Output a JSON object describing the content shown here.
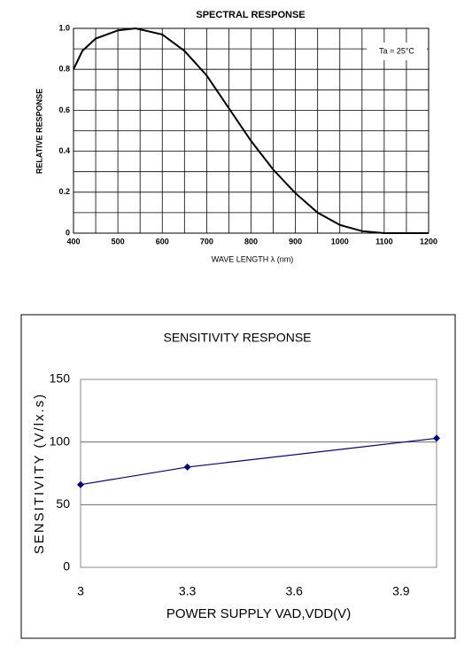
{
  "chart_data": [
    {
      "type": "line",
      "title": "SPECTRAL RESPONSE",
      "x_label": "WAVE LENGTH  λ  (nm)",
      "y_label": "RELATIVE RESPONSE",
      "annotation": "Ta = 25°C",
      "x": [
        400,
        420,
        450,
        500,
        540,
        600,
        650,
        700,
        750,
        800,
        850,
        900,
        950,
        1000,
        1050,
        1100,
        1150,
        1200
      ],
      "series": [
        {
          "name": "Relative response",
          "color": "#000000",
          "values": [
            0.8,
            0.89,
            0.95,
            0.99,
            1.0,
            0.97,
            0.89,
            0.77,
            0.61,
            0.45,
            0.31,
            0.195,
            0.1,
            0.04,
            0.01,
            0,
            0,
            0
          ]
        }
      ],
      "xlim": [
        400,
        1200
      ],
      "xticks": [
        400,
        500,
        600,
        700,
        800,
        900,
        1000,
        1100,
        1200
      ],
      "ylim": [
        0,
        1.0
      ],
      "yticks": [
        0,
        0.2,
        0.4,
        0.6,
        0.8,
        {
          "value": 1.0,
          "label": "1.0"
        }
      ],
      "grid": true,
      "minor_grid": true,
      "markers": false
    },
    {
      "type": "line",
      "title": "SENSITIVITY RESPONSE",
      "x_label": "POWER SUPPLY VAD,VDD(V)",
      "y_label": "SENSITIVITY (V/lx.s)",
      "x": [
        3,
        3.3,
        4.0
      ],
      "series": [
        {
          "name": "Sensitivity",
          "color": "#000080",
          "values": [
            66,
            80,
            103
          ]
        }
      ],
      "xlim": [
        3,
        4.0
      ],
      "xticks": [
        3,
        3.3,
        3.6,
        3.9
      ],
      "ylim": [
        0,
        150
      ],
      "yticks": [
        0,
        50,
        100,
        150
      ],
      "grid": true,
      "minor_grid": false,
      "markers": true
    }
  ]
}
